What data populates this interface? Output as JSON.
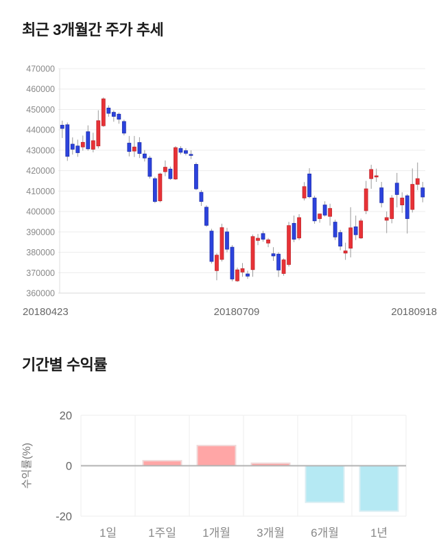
{
  "sections": {
    "price": {
      "title": "최근 3개월간 주가 추세"
    },
    "returns": {
      "title": "기간별 수익률"
    }
  },
  "chart_data": [
    {
      "type": "candlestick",
      "title": "최근 3개월간 주가 추세",
      "x_tick_labels": [
        "20180423",
        "20180709",
        "20180918"
      ],
      "y_ticks": [
        470000,
        460000,
        450000,
        440000,
        430000,
        420000,
        410000,
        400000,
        390000,
        380000,
        370000,
        360000
      ],
      "ylim": [
        360000,
        470000
      ],
      "grid": "horizontal",
      "colors": {
        "up": "#e83237",
        "up_stroke": "#c1272d",
        "down": "#2c43dd",
        "down_stroke": "#1f2fae",
        "wick": "#999999",
        "grid": "#ececec",
        "baseline": "#d9d9d9",
        "axis_line": "#dddddd",
        "tick_text": "#888888",
        "date_text": "#666666"
      },
      "candles": [
        [
          442300,
          444500,
          436000,
          440700
        ],
        [
          442500,
          443600,
          424800,
          427000
        ],
        [
          433000,
          436300,
          427900,
          430500
        ],
        [
          432100,
          435200,
          426800,
          428800
        ],
        [
          431600,
          437200,
          429800,
          433900
        ],
        [
          439100,
          442200,
          429800,
          430700
        ],
        [
          430500,
          438600,
          429000,
          434700
        ],
        [
          432100,
          449600,
          430900,
          444500
        ],
        [
          442000,
          455900,
          441500,
          455200
        ],
        [
          450700,
          452000,
          446400,
          448100
        ],
        [
          448600,
          449500,
          444000,
          446600
        ],
        [
          447700,
          448500,
          443000,
          445200
        ],
        [
          444100,
          445000,
          437300,
          438400
        ],
        [
          433500,
          437000,
          427000,
          429400
        ],
        [
          429600,
          437000,
          426700,
          431600
        ],
        [
          433800,
          436400,
          426200,
          428400
        ],
        [
          428200,
          430100,
          424500,
          426200
        ],
        [
          426200,
          427300,
          416100,
          417200
        ],
        [
          416100,
          417000,
          404100,
          404900
        ],
        [
          405200,
          419000,
          404500,
          418400
        ],
        [
          419500,
          425000,
          417300,
          421700
        ],
        [
          420800,
          422000,
          415500,
          416100
        ],
        [
          415900,
          432000,
          415500,
          431300
        ],
        [
          430900,
          432000,
          428000,
          429000
        ],
        [
          429800,
          431000,
          427500,
          428500
        ],
        [
          428000,
          430000,
          425700,
          427600
        ],
        [
          423100,
          424000,
          410500,
          411100
        ],
        [
          409400,
          410500,
          402700,
          404900
        ],
        [
          402100,
          403000,
          392500,
          393200
        ],
        [
          390400,
          391500,
          374500,
          375500
        ],
        [
          371000,
          379500,
          366300,
          378600
        ],
        [
          376500,
          394000,
          375500,
          392100
        ],
        [
          390000,
          392000,
          380000,
          381500
        ],
        [
          382500,
          383500,
          365800,
          366900
        ],
        [
          366000,
          372500,
          365500,
          371400
        ],
        [
          370300,
          374700,
          368000,
          372000
        ],
        [
          369400,
          371000,
          367000,
          368300
        ],
        [
          371500,
          388700,
          368000,
          387700
        ],
        [
          385800,
          389000,
          383500,
          386900
        ],
        [
          389200,
          390500,
          385200,
          386400
        ],
        [
          384500,
          387000,
          382500,
          386100
        ],
        [
          379300,
          382500,
          375800,
          378200
        ],
        [
          379100,
          380000,
          367900,
          371300
        ],
        [
          369600,
          377000,
          368500,
          376300
        ],
        [
          374000,
          394900,
          373000,
          393100
        ],
        [
          394200,
          398000,
          385000,
          386400
        ],
        [
          387000,
          398700,
          386000,
          397000
        ],
        [
          406600,
          414400,
          405400,
          412200
        ],
        [
          418400,
          421200,
          406500,
          407200
        ],
        [
          406600,
          407700,
          394000,
          395400
        ],
        [
          396500,
          399000,
          394500,
          398800
        ],
        [
          403200,
          405000,
          397500,
          398200
        ],
        [
          397600,
          403800,
          393100,
          401500
        ],
        [
          394800,
          396000,
          386000,
          387500
        ],
        [
          389700,
          391000,
          381000,
          383000
        ],
        [
          379600,
          384700,
          376300,
          380700
        ],
        [
          382000,
          402100,
          377500,
          392000
        ],
        [
          392500,
          398000,
          386000,
          388600
        ],
        [
          387000,
          396500,
          386500,
          395400
        ],
        [
          400400,
          415000,
          398700,
          411100
        ],
        [
          416100,
          422900,
          411100,
          420600
        ],
        [
          416900,
          421000,
          414500,
          417500
        ],
        [
          411600,
          414500,
          402000,
          404300
        ],
        [
          395700,
          400000,
          389400,
          397000
        ],
        [
          396500,
          408000,
          394200,
          406600
        ],
        [
          413900,
          418900,
          402000,
          408300
        ],
        [
          403200,
          409400,
          399300,
          406600
        ],
        [
          407700,
          408500,
          389200,
          396500
        ],
        [
          401000,
          421100,
          399500,
          413300
        ],
        [
          413300,
          424000,
          410500,
          416100
        ],
        [
          411600,
          414500,
          404500,
          407100
        ]
      ]
    },
    {
      "type": "bar",
      "title": "기간별 수익률",
      "categories": [
        "1일",
        "1주일",
        "1개월",
        "3개월",
        "6개월",
        "1년"
      ],
      "values": [
        0,
        2,
        8,
        1,
        -14.5,
        -18
      ],
      "ylabel": "수익률(%)",
      "y_ticks": [
        20,
        0,
        -20
      ],
      "ylim": [
        -20,
        20
      ],
      "legend": "none",
      "colors": {
        "positive": "#ffa6a6",
        "positive_stroke": "#f0d9d9",
        "negative": "#b5e9f3",
        "negative_stroke": "#daeef3",
        "zero_line": "#b3b3b3",
        "grid": "#ededed",
        "tick_text": "#666666",
        "category_text": "#888888",
        "ylabel_text": "#777777"
      }
    }
  ]
}
